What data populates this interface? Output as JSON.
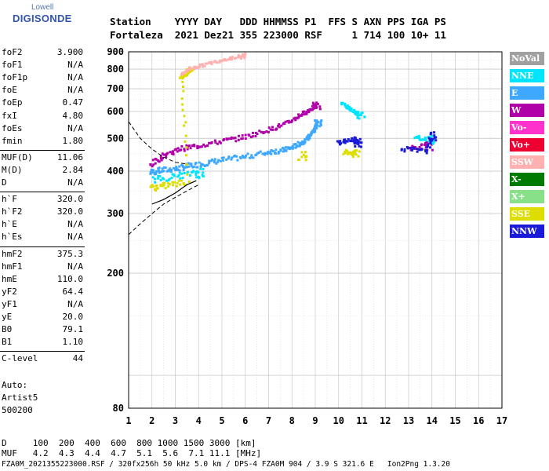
{
  "logo": {
    "line1": "Lowell",
    "line2": "DIGISONDE"
  },
  "header": {
    "row1": "Station    YYYY DAY   DDD HHMMSS P1  FFS S AXN PPS IGA PS",
    "row2": "Fortaleza  2021 Dez21 355 223000 RSF     1 714 100 10+ 11"
  },
  "params_group1": [
    {
      "name": "foF2",
      "value": "3.900"
    },
    {
      "name": "foF1",
      "value": "N/A"
    },
    {
      "name": "foF1p",
      "value": "N/A"
    },
    {
      "name": "foE",
      "value": "N/A"
    },
    {
      "name": "foEp",
      "value": "0.47"
    },
    {
      "name": "fxI",
      "value": "4.80"
    },
    {
      "name": "foEs",
      "value": "N/A"
    },
    {
      "name": "fmin",
      "value": "1.80"
    }
  ],
  "params_group2": [
    {
      "name": "MUF(D)",
      "value": "11.06"
    },
    {
      "name": "M(D)",
      "value": "2.84"
    },
    {
      "name": "D",
      "value": "N/A"
    }
  ],
  "params_group3": [
    {
      "name": "h`F",
      "value": "320.0"
    },
    {
      "name": "h`F2",
      "value": "320.0"
    },
    {
      "name": "h`E",
      "value": "N/A"
    },
    {
      "name": "h`Es",
      "value": "N/A"
    }
  ],
  "params_group4": [
    {
      "name": "hmF2",
      "value": "375.3"
    },
    {
      "name": "hmF1",
      "value": "N/A"
    },
    {
      "name": "hmE",
      "value": "110.0"
    },
    {
      "name": "yF2",
      "value": "64.4"
    },
    {
      "name": "yF1",
      "value": "N/A"
    },
    {
      "name": "yE",
      "value": "20.0"
    },
    {
      "name": "B0",
      "value": "79.1"
    },
    {
      "name": "B1",
      "value": "1.10"
    }
  ],
  "params_group5": [
    {
      "name": "C-level",
      "value": "44"
    }
  ],
  "autoscaler": {
    "line1": "Auto:",
    "line2": "Artist5",
    "line3": "500200"
  },
  "legend": [
    {
      "label": "NoVal",
      "color": "#a0a0a0"
    },
    {
      "label": "NNE",
      "color": "#00e5ff"
    },
    {
      "label": "E",
      "color": "#3ea8ff"
    },
    {
      "label": "W",
      "color": "#b000a8"
    },
    {
      "label": "Vo-",
      "color": "#ff33cc"
    },
    {
      "label": "Vo+",
      "color": "#ee0033"
    },
    {
      "label": "SSW",
      "color": "#ffb0b0"
    },
    {
      "label": "X-",
      "color": "#007a00"
    },
    {
      "label": "X+",
      "color": "#88e088"
    },
    {
      "label": "SSE",
      "color": "#dddd00"
    },
    {
      "label": "NNW",
      "color": "#1a1ad8"
    }
  ],
  "footer": {
    "d_row": "D     100  200  400  600  800 1000 1500 3000 [km]",
    "muf_row": "MUF   4.2  4.3  4.4  4.7  5.1  5.6  7.1 11.1 [MHz]",
    "file_row": "FZA0M_2021355223000.RSF / 320fx256h 50 kHz 5.0 km / DPS-4 FZA0M 904 / 3.9 S 321.6 E   Ion2Png 1.3.20"
  },
  "chart_data": {
    "type": "scatter",
    "title": "",
    "xlabel": "",
    "ylabel": "",
    "xlim": [
      1,
      17
    ],
    "ylim": [
      80,
      900
    ],
    "x_ticks": [
      1,
      2,
      3,
      4,
      5,
      6,
      7,
      8,
      9,
      10,
      11,
      12,
      13,
      14,
      15,
      16,
      17
    ],
    "y_ticks": [
      80,
      200,
      300,
      400,
      500,
      600,
      700,
      800,
      900
    ],
    "grid": true,
    "scale_y": "log",
    "legend_position": "right",
    "series": [
      {
        "name": "E",
        "color": "#3ea8ff",
        "points": [
          [
            1.9,
            400
          ],
          [
            2.3,
            405
          ],
          [
            3.0,
            410
          ],
          [
            3.6,
            418
          ],
          [
            4.2,
            425
          ],
          [
            5.0,
            435
          ],
          [
            6.0,
            445
          ],
          [
            7.0,
            460
          ],
          [
            7.6,
            465
          ],
          [
            8.0,
            475
          ],
          [
            8.4,
            490
          ],
          [
            8.7,
            510
          ],
          [
            8.9,
            530
          ],
          [
            9.05,
            560
          ]
        ]
      },
      {
        "name": "W",
        "color": "#b000a8",
        "points": [
          [
            1.9,
            420
          ],
          [
            2.5,
            450
          ],
          [
            3.2,
            470
          ],
          [
            4.0,
            480
          ],
          [
            5.0,
            495
          ],
          [
            6.0,
            510
          ],
          [
            7.0,
            535
          ],
          [
            7.8,
            560
          ],
          [
            8.3,
            590
          ],
          [
            8.7,
            610
          ],
          [
            9.0,
            630
          ],
          [
            13.0,
            470
          ],
          [
            13.8,
            480
          ]
        ]
      },
      {
        "name": "NNE",
        "color": "#00e5ff",
        "points": [
          [
            2.0,
            380
          ],
          [
            3.0,
            390
          ],
          [
            4.0,
            400
          ],
          [
            10.1,
            640
          ],
          [
            10.5,
            610
          ],
          [
            10.9,
            590
          ],
          [
            13.2,
            510
          ],
          [
            13.9,
            500
          ]
        ]
      },
      {
        "name": "SSE",
        "color": "#dddd00",
        "points": [
          [
            1.9,
            360
          ],
          [
            2.5,
            365
          ],
          [
            3.5,
            375
          ],
          [
            3.2,
            760
          ],
          [
            3.6,
            800
          ],
          [
            8.4,
            450
          ],
          [
            10.2,
            460
          ],
          [
            10.7,
            455
          ]
        ]
      },
      {
        "name": "SSW",
        "color": "#ffb0b0",
        "points": [
          [
            3.2,
            780
          ],
          [
            3.6,
            810
          ],
          [
            4.2,
            830
          ],
          [
            5.0,
            860
          ],
          [
            5.8,
            880
          ]
        ]
      },
      {
        "name": "NNW",
        "color": "#1a1ad8",
        "points": [
          [
            9.9,
            490
          ],
          [
            10.6,
            500
          ],
          [
            10.8,
            490
          ],
          [
            12.6,
            470
          ],
          [
            13.7,
            460
          ],
          [
            14.0,
            510
          ]
        ]
      }
    ],
    "trace_solid": [
      [
        2.0,
        320
      ],
      [
        2.5,
        330
      ],
      [
        3.0,
        345
      ],
      [
        3.5,
        365
      ],
      [
        3.9,
        375
      ]
    ],
    "trace_dashed": [
      [
        1.0,
        560
      ],
      [
        1.5,
        500
      ],
      [
        2.0,
        465
      ],
      [
        2.5,
        440
      ],
      [
        3.0,
        425
      ],
      [
        3.5,
        420
      ]
    ],
    "trace_lower": [
      [
        1.0,
        260
      ],
      [
        1.5,
        280
      ],
      [
        2.0,
        300
      ],
      [
        2.5,
        320
      ],
      [
        3.0,
        335
      ],
      [
        3.5,
        350
      ],
      [
        4.0,
        365
      ]
    ]
  }
}
